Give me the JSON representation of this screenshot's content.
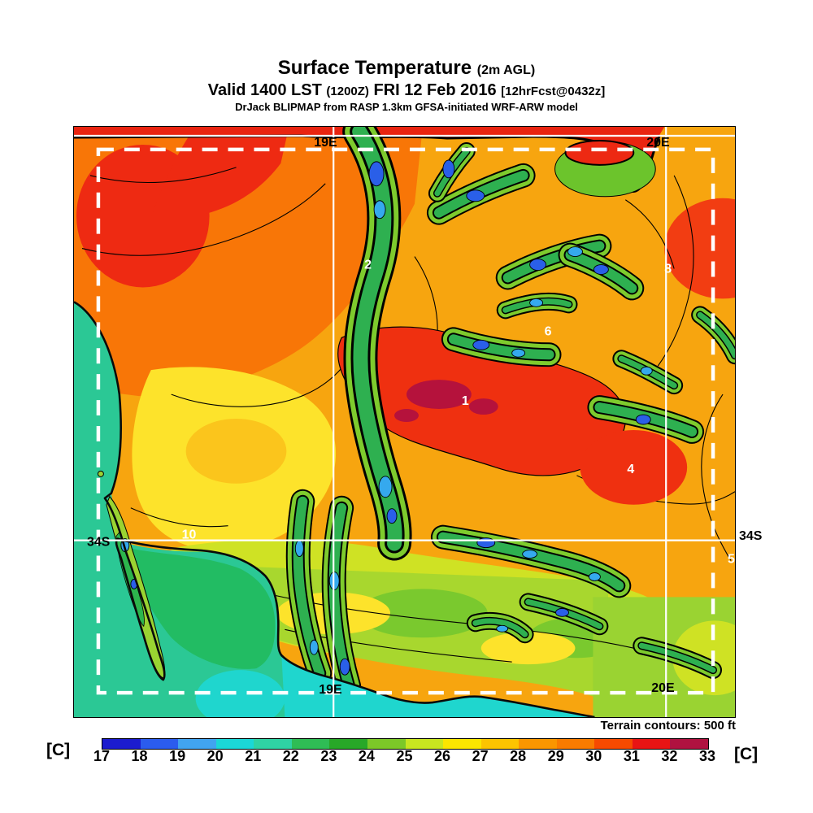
{
  "header": {
    "title": "Surface Temperature",
    "title_suffix": "(2m AGL)",
    "valid_prefix": "Valid 1400 LST",
    "valid_zulu": "(1200Z)",
    "valid_date": "FRI 12 Feb 2016",
    "valid_fcst": "[12hrFcst@0432z]",
    "model_line": "DrJack BLIPMAP from RASP 1.3km GFSA-initiated WRF-ARW model"
  },
  "map": {
    "grid_labels": {
      "lon19": "19E",
      "lon20": "20E",
      "lat34": "34S"
    },
    "site_numbers": [
      "1",
      "2",
      "4",
      "5",
      "6",
      "8",
      "10"
    ],
    "footnote": "Terrain contours: 500 ft"
  },
  "colorbar": {
    "unit": "[C]",
    "ticks": [
      "17",
      "18",
      "19",
      "20",
      "21",
      "22",
      "23",
      "24",
      "25",
      "26",
      "27",
      "28",
      "29",
      "30",
      "31",
      "32",
      "33"
    ],
    "colors": [
      "#1C1CCE",
      "#2B5CEE",
      "#41A4F0",
      "#1BD7D7",
      "#2FD3A4",
      "#2FBD55",
      "#28A828",
      "#7CC828",
      "#C8E620",
      "#FBE600",
      "#FCC400",
      "#FA9600",
      "#F97B00",
      "#F64A00",
      "#E81414",
      "#B01240"
    ]
  }
}
